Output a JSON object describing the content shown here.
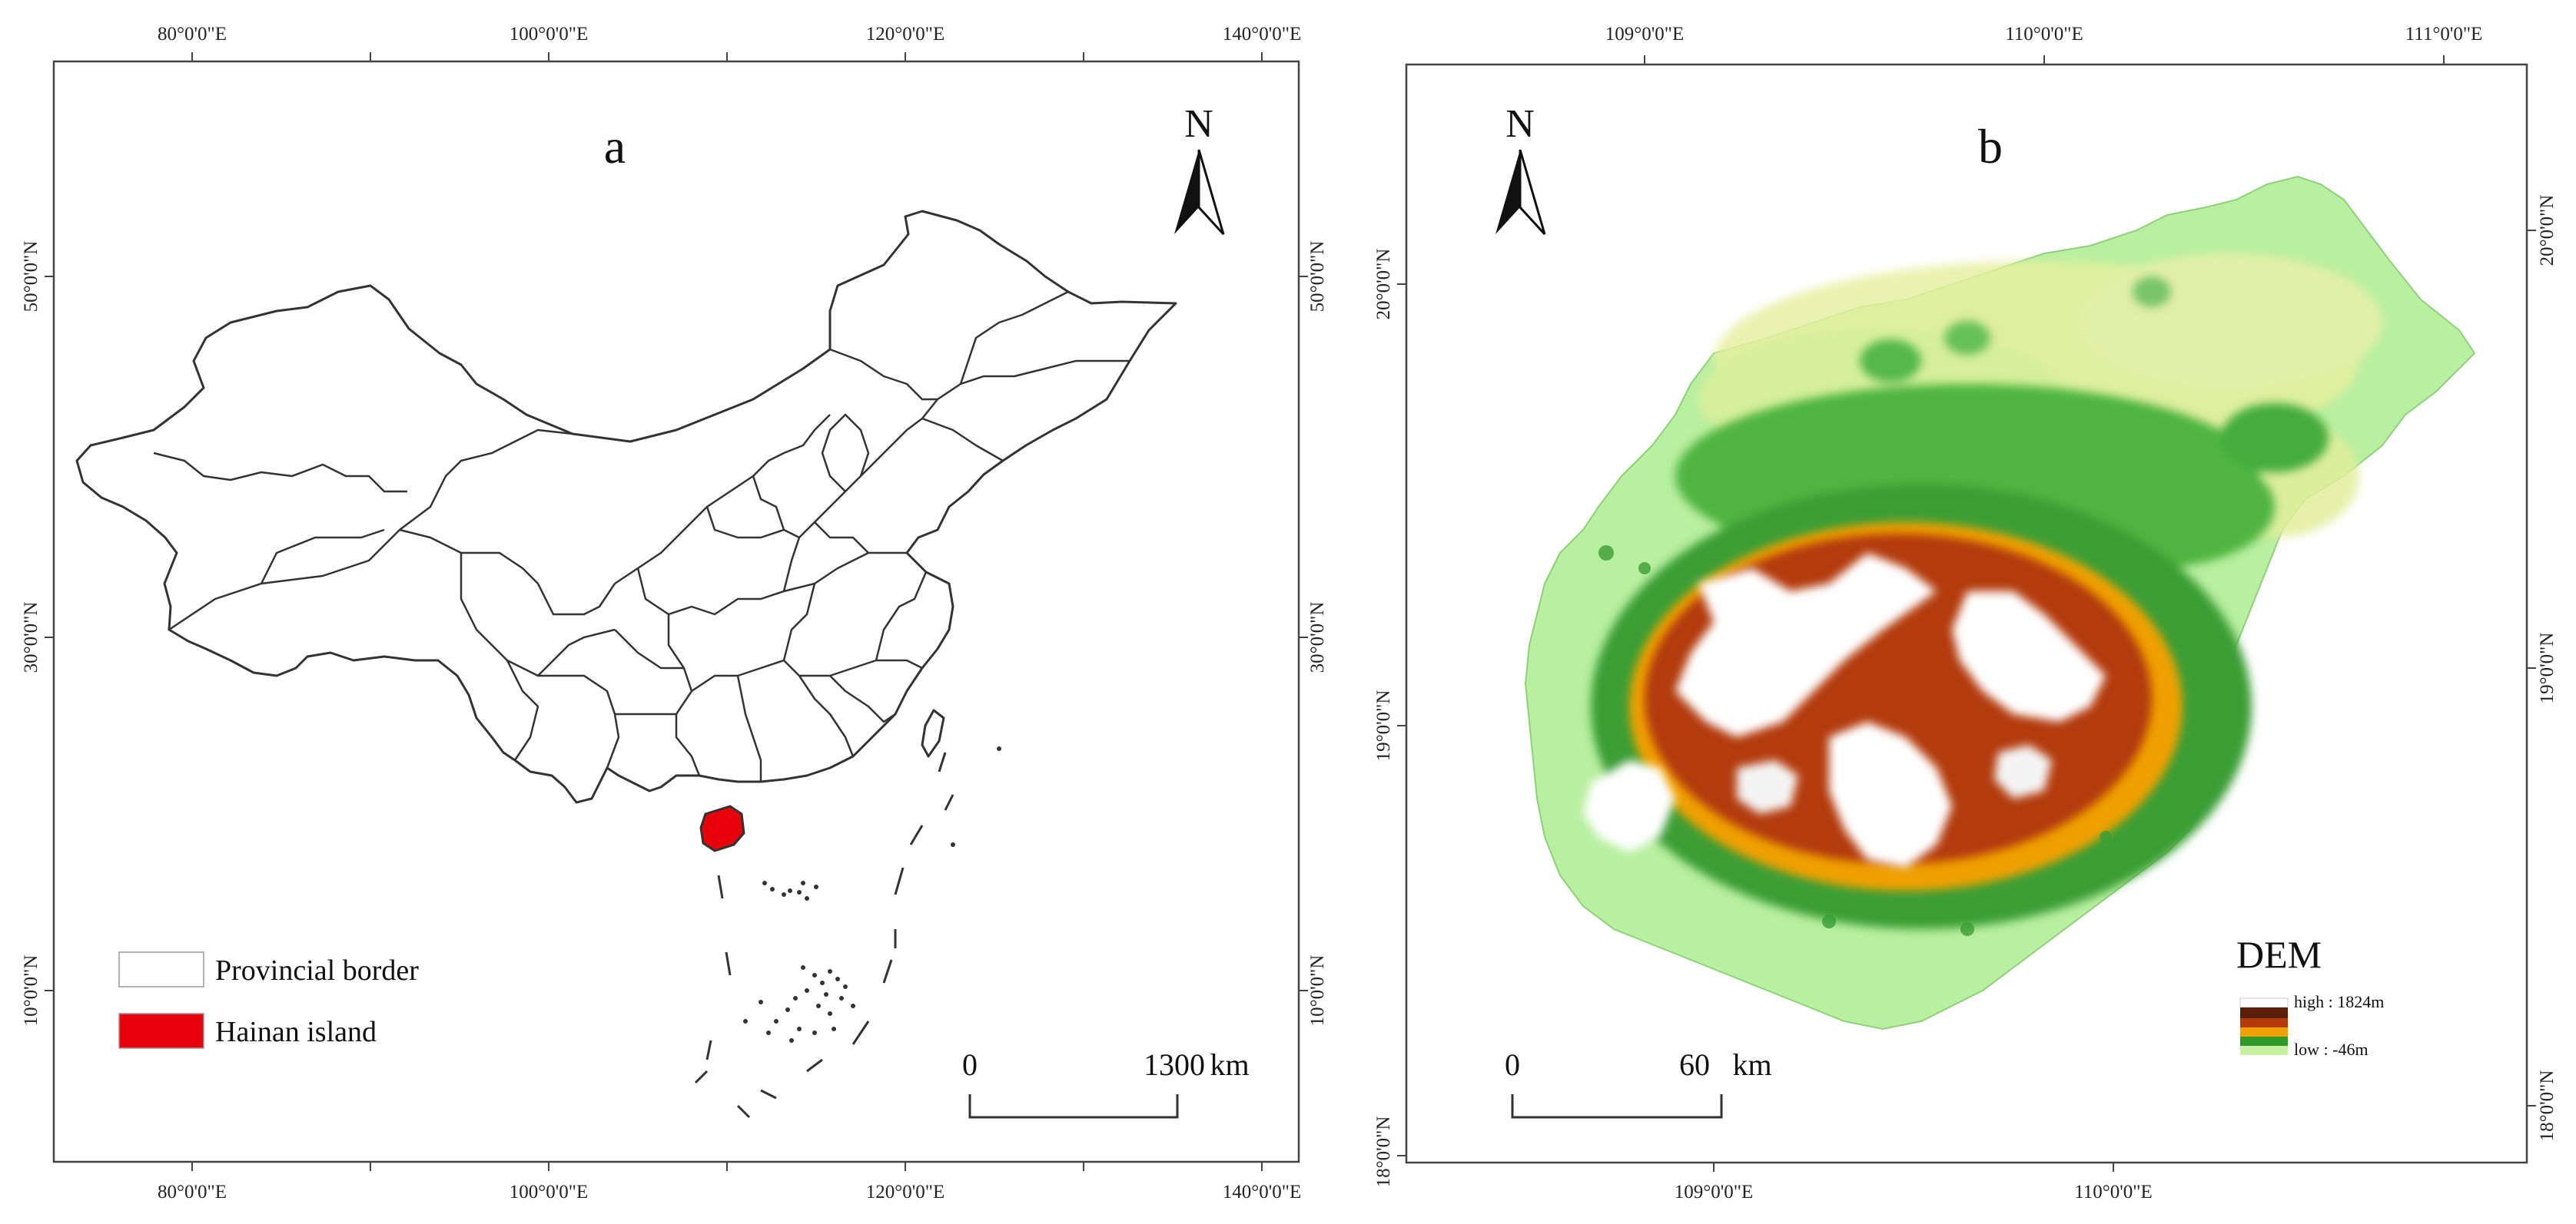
{
  "panel_a": {
    "label": "a",
    "north": "N",
    "lon_ticks": [
      "80°0'0\"E",
      "100°0'0\"E",
      "120°0'0\"E",
      "140°0'0\"E"
    ],
    "lat_ticks": [
      "50°0'0\"N",
      "30°0'0\"N",
      "10°0'0\"N"
    ],
    "legend": {
      "items": [
        {
          "label": "Provincial border",
          "swatch": "#ffffff"
        },
        {
          "label": "Hainan island",
          "swatch": "#e8000b"
        }
      ]
    },
    "scale": {
      "start": "0",
      "end": "1300",
      "unit": "km"
    }
  },
  "panel_b": {
    "label": "b",
    "north": "N",
    "lon_ticks": [
      "109°0'0\"E",
      "110°0'0\"E",
      "111°0'0\"E"
    ],
    "lat_ticks": [
      "20°0'0\"N",
      "19°0'0\"N",
      "18°0'0\"N"
    ],
    "dem": {
      "title": "DEM",
      "high": "high : 1824m",
      "low": "low : -46m",
      "colors": [
        "#ffffff",
        "#5a1f08",
        "#b33a0a",
        "#f0a000",
        "#2f9a2a",
        "#c8f0a0"
      ]
    },
    "scale": {
      "start": "0",
      "end": "60",
      "unit": "km"
    }
  }
}
